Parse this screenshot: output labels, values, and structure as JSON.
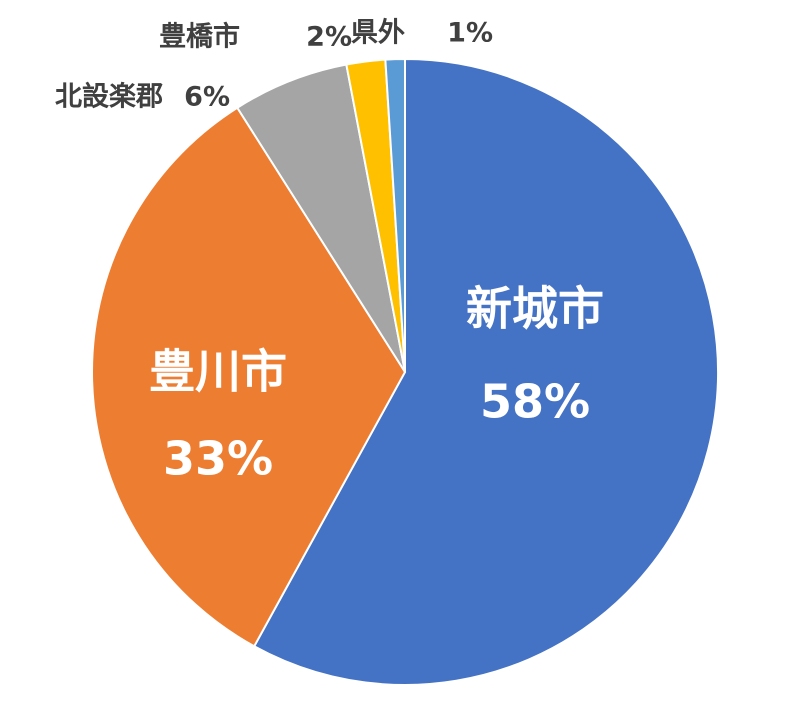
{
  "chart_data": {
    "type": "pie",
    "categories": [
      "新城市",
      "豊川市",
      "北設楽郡",
      "豊橋市",
      "県外"
    ],
    "values": [
      58,
      33,
      6,
      2,
      1
    ],
    "value_labels": [
      "58%",
      "33%",
      "6%",
      "2%",
      "1%"
    ],
    "colors": [
      "#4472c4",
      "#ed7d31",
      "#a5a5a5",
      "#ffc000",
      "#5b9bd5"
    ]
  }
}
